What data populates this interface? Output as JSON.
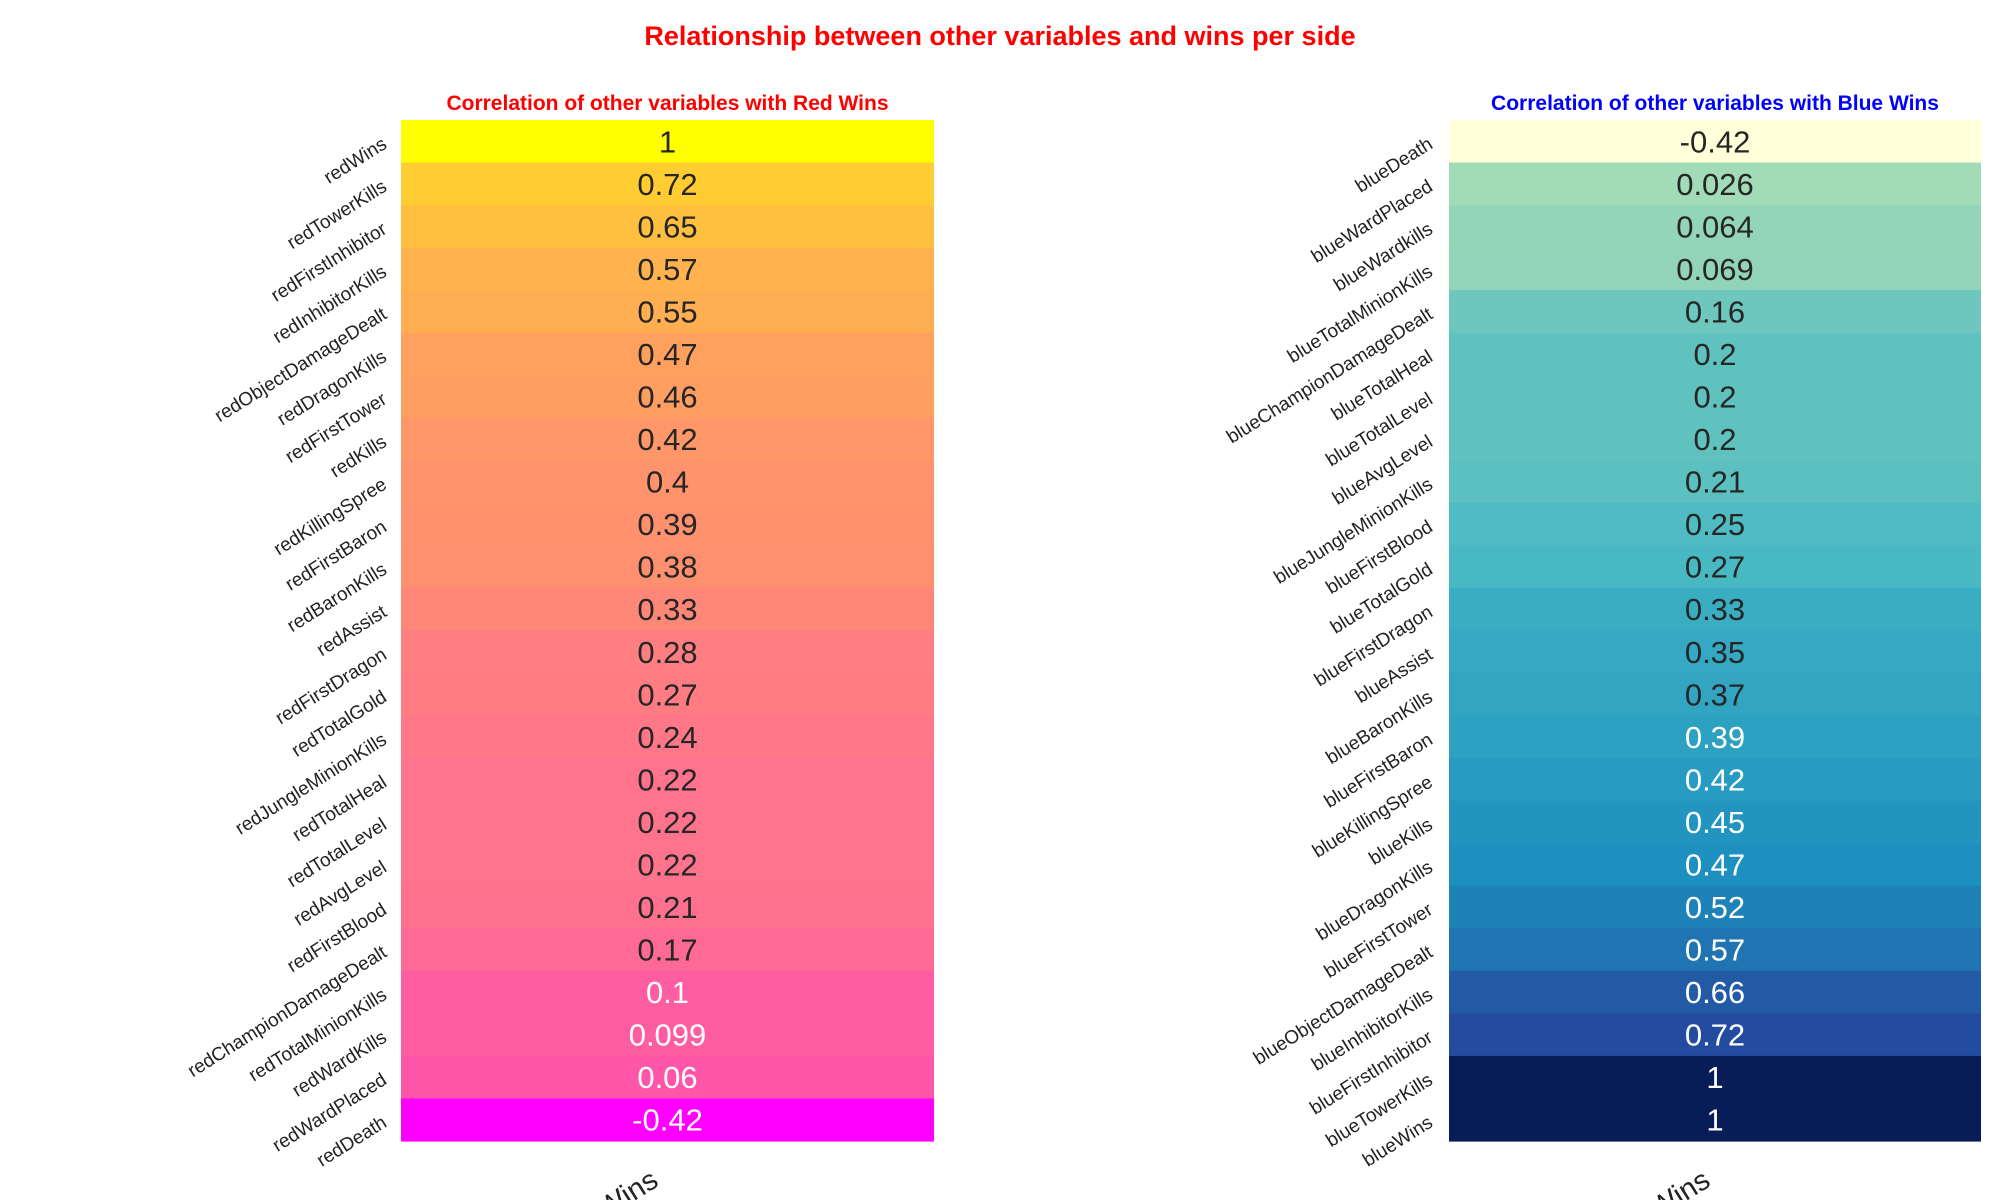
{
  "title": "Relationship between other variables and wins per side",
  "chart_data": [
    {
      "type": "heatmap",
      "title": "Correlation of other variables with Red Wins",
      "title_color": "#ff0000",
      "colormap": "spring",
      "column": "redWins",
      "rows": [
        {
          "label": "redWins",
          "value": 1
        },
        {
          "label": "redTowerKills",
          "value": 0.72
        },
        {
          "label": "redFirstInhibitor",
          "value": 0.65
        },
        {
          "label": "redInhibitorKills",
          "value": 0.57
        },
        {
          "label": "redObjectDamageDealt",
          "value": 0.55
        },
        {
          "label": "redDragonKills",
          "value": 0.47
        },
        {
          "label": "redFirstTower",
          "value": 0.46
        },
        {
          "label": "redKills",
          "value": 0.42
        },
        {
          "label": "redKillingSpree",
          "value": 0.4
        },
        {
          "label": "redFirstBaron",
          "value": 0.39
        },
        {
          "label": "redBaronKills",
          "value": 0.38
        },
        {
          "label": "redAssist",
          "value": 0.33
        },
        {
          "label": "redFirstDragon",
          "value": 0.28
        },
        {
          "label": "redTotalGold",
          "value": 0.27
        },
        {
          "label": "redJungleMinionKills",
          "value": 0.24
        },
        {
          "label": "redTotalHeal",
          "value": 0.22
        },
        {
          "label": "redTotalLevel",
          "value": 0.22
        },
        {
          "label": "redAvgLevel",
          "value": 0.22
        },
        {
          "label": "redFirstBlood",
          "value": 0.21
        },
        {
          "label": "redChampionDamageDealt",
          "value": 0.17
        },
        {
          "label": "redTotalMinionKills",
          "value": 0.1
        },
        {
          "label": "redWardKills",
          "value": 0.099
        },
        {
          "label": "redWardPlaced",
          "value": 0.06
        },
        {
          "label": "redDeath",
          "value": -0.42
        }
      ]
    },
    {
      "type": "heatmap",
      "title": "Correlation of other variables with Blue Wins",
      "title_color": "#0000ff",
      "colormap": "YlGnBu",
      "column": "blueWins",
      "rows": [
        {
          "label": "blueDeath",
          "value": -0.42
        },
        {
          "label": "blueWardPlaced",
          "value": 0.026
        },
        {
          "label": "blueWardkills",
          "value": 0.064
        },
        {
          "label": "blueTotalMinionKills",
          "value": 0.069
        },
        {
          "label": "blueChampionDamageDealt",
          "value": 0.16
        },
        {
          "label": "blueTotalHeal",
          "value": 0.2
        },
        {
          "label": "blueTotalLevel",
          "value": 0.2
        },
        {
          "label": "blueAvgLevel",
          "value": 0.2
        },
        {
          "label": "blueJungleMinionKills",
          "value": 0.21
        },
        {
          "label": "blueFirstBlood",
          "value": 0.25
        },
        {
          "label": "blueTotalGold",
          "value": 0.27
        },
        {
          "label": "blueFirstDragon",
          "value": 0.33
        },
        {
          "label": "blueAssist",
          "value": 0.35
        },
        {
          "label": "blueBaronKills",
          "value": 0.37
        },
        {
          "label": "blueFirstBaron",
          "value": 0.39
        },
        {
          "label": "blueKillingSpree",
          "value": 0.42
        },
        {
          "label": "blueKills",
          "value": 0.45
        },
        {
          "label": "blueDragonKills",
          "value": 0.47
        },
        {
          "label": "blueFirstTower",
          "value": 0.52
        },
        {
          "label": "blueObjectDamageDealt",
          "value": 0.57
        },
        {
          "label": "blueInhibitorKills",
          "value": 0.66
        },
        {
          "label": "blueFirstInhibitor",
          "value": 0.72
        },
        {
          "label": "blueTowerKills",
          "value": 1
        },
        {
          "label": "blueWins",
          "value": 1
        }
      ]
    }
  ]
}
